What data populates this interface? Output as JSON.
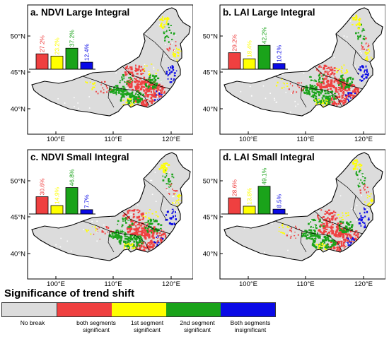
{
  "panels": [
    {
      "id": "a",
      "title": "a. NDVI Large Integral",
      "bars": [
        {
          "label": "27.2%",
          "value": 27.2,
          "category": "both"
        },
        {
          "label": "23.2%",
          "value": 23.2,
          "category": "first"
        },
        {
          "label": "37.2%",
          "value": 37.2,
          "category": "second"
        },
        {
          "label": "12.4%",
          "value": 12.4,
          "category": "insignificant"
        }
      ]
    },
    {
      "id": "b",
      "title": "b. LAI Large Integral",
      "bars": [
        {
          "label": "29.2%",
          "value": 29.2,
          "category": "both"
        },
        {
          "label": "18.4%",
          "value": 18.4,
          "category": "first"
        },
        {
          "label": "42.2%",
          "value": 42.2,
          "category": "second"
        },
        {
          "label": "10.2%",
          "value": 10.2,
          "category": "insignificant"
        }
      ]
    },
    {
      "id": "c",
      "title": "c. NDVI Small Integral",
      "bars": [
        {
          "label": "30.6%",
          "value": 30.6,
          "category": "both"
        },
        {
          "label": "14.9%",
          "value": 14.9,
          "category": "first"
        },
        {
          "label": "46.8%",
          "value": 46.8,
          "category": "second"
        },
        {
          "label": "7.7%",
          "value": 7.7,
          "category": "insignificant"
        }
      ]
    },
    {
      "id": "d",
      "title": "d. LAI Small Integral",
      "bars": [
        {
          "label": "28.6%",
          "value": 28.6,
          "category": "both"
        },
        {
          "label": "13.8%",
          "value": 13.8,
          "category": "first"
        },
        {
          "label": "49.1%",
          "value": 49.1,
          "category": "second"
        },
        {
          "label": "8.5%",
          "value": 8.5,
          "category": "insignificant"
        }
      ]
    }
  ],
  "axes": {
    "lat_ticks": [
      "50°N",
      "45°N",
      "40°N"
    ],
    "lon_ticks": [
      "100°E",
      "110°E",
      "120°E"
    ]
  },
  "legend": {
    "title": "Significance of trend shift",
    "items": [
      {
        "key": "nobreak",
        "label": "No break",
        "color": "#dcdcdc"
      },
      {
        "key": "both",
        "label": "both segments significant",
        "color": "#ef4040"
      },
      {
        "key": "first",
        "label": "1st segment significant",
        "color": "#ffff00"
      },
      {
        "key": "second",
        "label": "2nd segment significant",
        "color": "#1aa31a"
      },
      {
        "key": "insignificant",
        "label": "Both segments insignificant",
        "color": "#0a0ae6"
      }
    ]
  },
  "colors": {
    "nobreak": "#dcdcdc",
    "both": "#ef4040",
    "first": "#ffff00",
    "second": "#1aa31a",
    "insignificant": "#0a0ae6",
    "boundary": "#000000"
  }
}
